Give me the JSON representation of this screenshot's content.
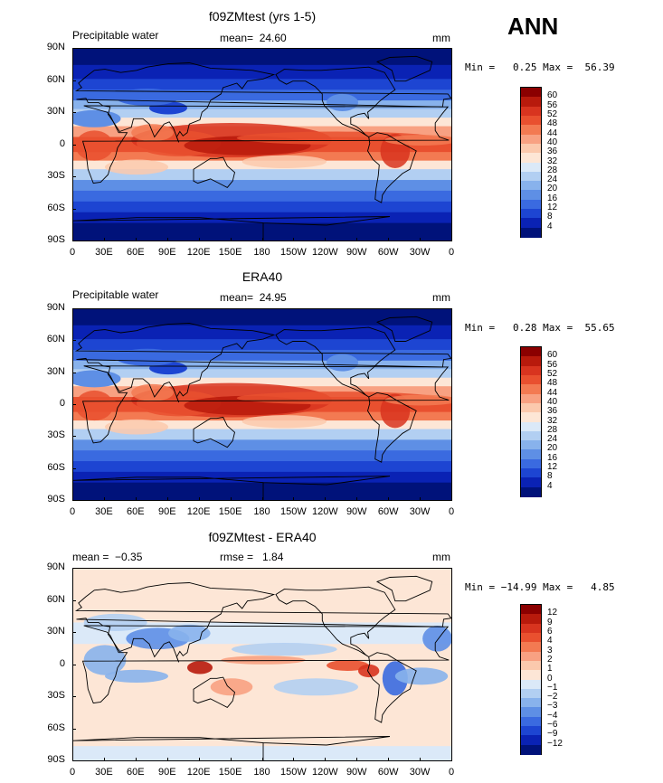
{
  "season": "ANN",
  "panels": [
    {
      "title": "f09ZMtest (yrs 1-5)",
      "left_header": "Precipitable water",
      "center_header": "mean=  24.60",
      "right_header": "mm",
      "minmax": "Min =   0.25 Max =  56.39",
      "colorbar_labels": [
        "60",
        "56",
        "52",
        "48",
        "44",
        "40",
        "36",
        "32",
        "28",
        "24",
        "20",
        "16",
        "12",
        "8",
        "4"
      ],
      "colorbar_colors": [
        "#8b0000",
        "#b81a0c",
        "#d8341f",
        "#e9502f",
        "#f37a52",
        "#f8a182",
        "#fbc9ad",
        "#fde6d6",
        "#dbe9f8",
        "#b2cff2",
        "#88b2ec",
        "#5e8fe5",
        "#3a6ae0",
        "#1d45d2",
        "#0a22b4",
        "#00127a"
      ],
      "kind": "field"
    },
    {
      "title": "ERA40",
      "left_header": "Precipitable water",
      "center_header": "mean=  24.95",
      "right_header": "mm",
      "minmax": "Min =   0.28 Max =  55.65",
      "colorbar_labels": [
        "60",
        "56",
        "52",
        "48",
        "44",
        "40",
        "36",
        "32",
        "28",
        "24",
        "20",
        "16",
        "12",
        "8",
        "4"
      ],
      "colorbar_colors": [
        "#8b0000",
        "#b81a0c",
        "#d8341f",
        "#e9502f",
        "#f37a52",
        "#f8a182",
        "#fbc9ad",
        "#fde6d6",
        "#dbe9f8",
        "#b2cff2",
        "#88b2ec",
        "#5e8fe5",
        "#3a6ae0",
        "#1d45d2",
        "#0a22b4",
        "#00127a"
      ],
      "kind": "field"
    },
    {
      "title": "f09ZMtest - ERA40",
      "left_header": "mean =  −0.35",
      "center_header": "rmse =   1.84",
      "right_header": "mm",
      "minmax": "Min = −14.99 Max =   4.85",
      "colorbar_labels": [
        "12",
        "9",
        "6",
        "4",
        "3",
        "2",
        "1",
        "0",
        "−1",
        "−2",
        "−3",
        "−4",
        "−6",
        "−9",
        "−12"
      ],
      "colorbar_colors": [
        "#8b0000",
        "#b81a0c",
        "#d8341f",
        "#e9502f",
        "#f37a52",
        "#f8a182",
        "#fbc9ad",
        "#fde6d6",
        "#dbe9f8",
        "#b2cff2",
        "#88b2ec",
        "#5e8fe5",
        "#3a6ae0",
        "#1d45d2",
        "#0a22b4",
        "#00127a"
      ],
      "kind": "diff"
    }
  ],
  "lat_labels": [
    "90N",
    "60N",
    "30N",
    "0",
    "30S",
    "60S",
    "90S"
  ],
  "lon_labels": [
    "0",
    "30E",
    "60E",
    "90E",
    "120E",
    "150E",
    "180",
    "150W",
    "120W",
    "90W",
    "60W",
    "30W",
    "0"
  ],
  "chart_data": [
    {
      "type": "heatmap",
      "title": "f09ZMtest (yrs 1-5)",
      "subtitle": "Precipitable water",
      "units": "mm",
      "mean": 24.6,
      "min": 0.25,
      "max": 56.39,
      "levels": [
        4,
        8,
        12,
        16,
        20,
        24,
        28,
        32,
        36,
        40,
        44,
        48,
        52,
        56,
        60
      ]
    },
    {
      "type": "heatmap",
      "title": "ERA40",
      "subtitle": "Precipitable water",
      "units": "mm",
      "mean": 24.95,
      "min": 0.28,
      "max": 55.65,
      "levels": [
        4,
        8,
        12,
        16,
        20,
        24,
        28,
        32,
        36,
        40,
        44,
        48,
        52,
        56,
        60
      ]
    },
    {
      "type": "heatmap",
      "title": "f09ZMtest - ERA40",
      "units": "mm",
      "mean": -0.35,
      "rmse": 1.84,
      "min": -14.99,
      "max": 4.85,
      "levels": [
        -12,
        -9,
        -6,
        -4,
        -3,
        -2,
        -1,
        0,
        1,
        2,
        3,
        4,
        6,
        9,
        12
      ]
    }
  ]
}
